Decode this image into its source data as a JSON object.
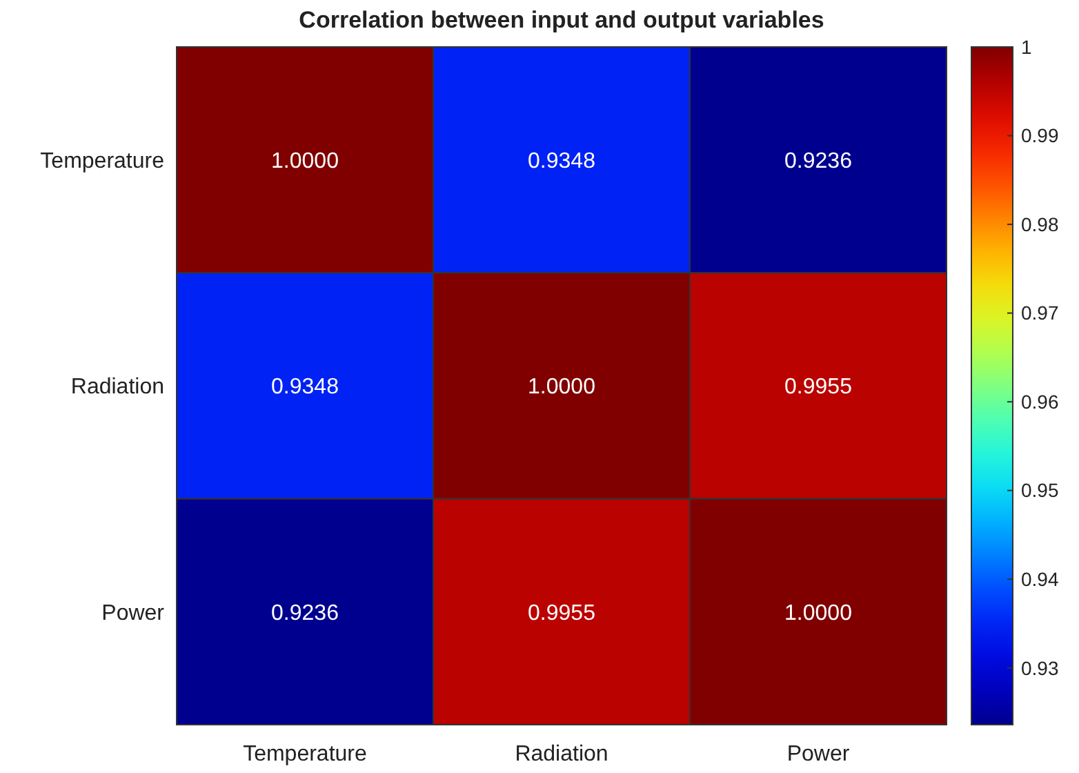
{
  "chart_data": {
    "type": "heatmap",
    "title": "Correlation between input and output variables",
    "categories": [
      "Temperature",
      "Radiation",
      "Power"
    ],
    "y_categories": [
      "Temperature",
      "Radiation",
      "Power"
    ],
    "cells": [
      [
        1.0,
        0.9348,
        0.9236
      ],
      [
        0.9348,
        1.0,
        0.9955
      ],
      [
        0.9236,
        0.9955,
        1.0
      ]
    ],
    "cell_labels": [
      [
        "1.0000",
        "0.9348",
        "0.9236"
      ],
      [
        "0.9348",
        "1.0000",
        "0.9955"
      ],
      [
        "0.9236",
        "0.9955",
        "1.0000"
      ]
    ],
    "clim": [
      0.9236,
      1
    ],
    "cticks": [
      0.93,
      0.94,
      0.95,
      0.96,
      0.97,
      0.98,
      0.99,
      1
    ]
  }
}
